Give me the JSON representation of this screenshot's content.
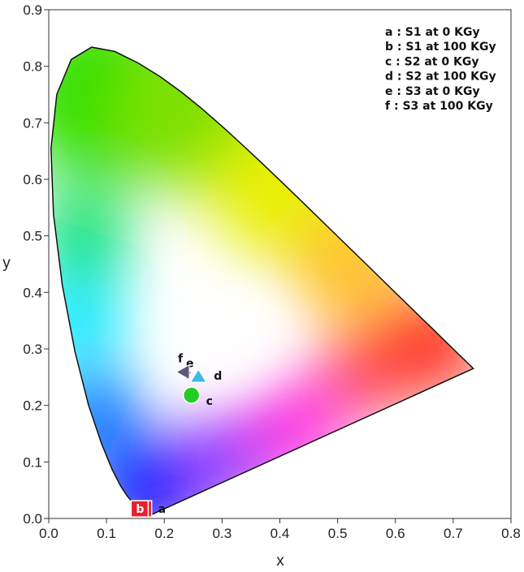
{
  "chart_data": {
    "type": "scatter",
    "title": "",
    "xlabel": "x",
    "ylabel": "y",
    "xlim": [
      0.0,
      0.8
    ],
    "ylim": [
      0.0,
      0.9
    ],
    "x_ticks": [
      "0.0",
      "0.1",
      "0.2",
      "0.3",
      "0.4",
      "0.5",
      "0.6",
      "0.7",
      "0.8"
    ],
    "y_ticks": [
      "0.0",
      "0.1",
      "0.2",
      "0.3",
      "0.4",
      "0.5",
      "0.6",
      "0.7",
      "0.8",
      "0.9"
    ],
    "grid": false,
    "legend_position": "top-right",
    "background": "CIE 1931 chromaticity diagram",
    "legend": [
      "a : S1 at 0 KGy",
      "b : S1 at 100 KGy",
      "c : S2 at 0 KGy",
      "d : S2 at 100 KGy",
      "e : S3 at 0 KGy",
      "f : S3 at 100 KGy"
    ],
    "points": [
      {
        "label": "a",
        "x": 0.164,
        "y": 0.017,
        "marker": "square",
        "color": "#e8202a",
        "text_color": "#ffffff"
      },
      {
        "label": "b",
        "x": 0.158,
        "y": 0.017,
        "marker": "square",
        "color": "#e8202a",
        "text_color": "#ffffff"
      },
      {
        "label": "c",
        "x": 0.247,
        "y": 0.218,
        "marker": "circle",
        "color": "#22cc22",
        "text_color": "#111111"
      },
      {
        "label": "d",
        "x": 0.259,
        "y": 0.251,
        "marker": "triangle",
        "color": "#40b8e8",
        "text_color": "#111111"
      },
      {
        "label": "e",
        "x": 0.239,
        "y": 0.253,
        "marker": "triangle-down",
        "color": "#cc33cc",
        "text_color": "#111111"
      },
      {
        "label": "f",
        "x": 0.232,
        "y": 0.259,
        "marker": "triangle-left",
        "color": "#5a5a78",
        "text_color": "#111111"
      }
    ]
  }
}
